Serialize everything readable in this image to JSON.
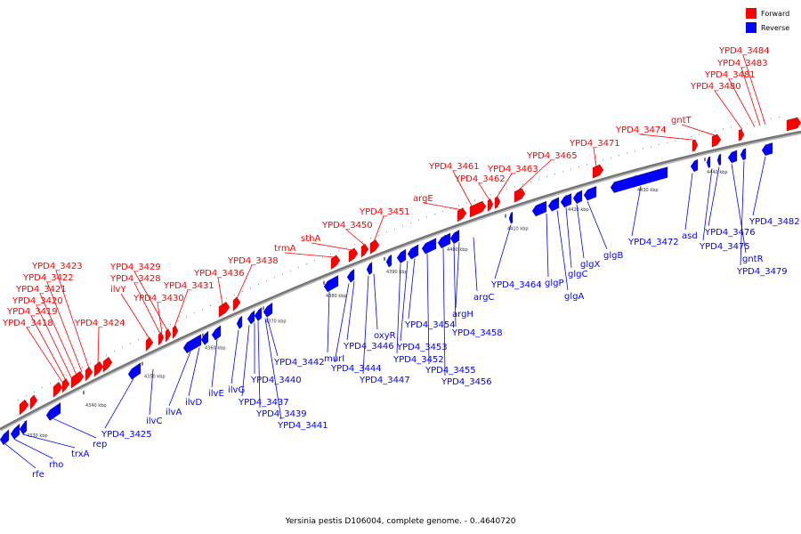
{
  "caption": "Yersinia pestis D106004, complete genome. - 0..4640720",
  "legend": {
    "forward": {
      "label": "Forward",
      "color": "#ff0000"
    },
    "reverse": {
      "label": "Reverse",
      "color": "#0000ff"
    }
  },
  "ticks": [
    "4330 kbp",
    "4340 kbp",
    "4350 kbp",
    "4360 kbp",
    "4370 kbp",
    "4380 kbp",
    "4390 kbp",
    "4400 kbp",
    "4410 kbp",
    "4420 kbp",
    "4430 kbp",
    "4440 kbp"
  ],
  "forward_genes": [
    "YPD4_3418",
    "YPD4_3419",
    "YPD4_3420",
    "YPD4_3421",
    "YPD4_3422",
    "YPD4_3423",
    "YPD4_3424",
    "ilvY",
    "YPD4_3428",
    "YPD4_3429",
    "YPD4_3430",
    "YPD4_3431",
    "YPD4_3436",
    "YPD4_3438",
    "trmA",
    "sthA",
    "YPD4_3450",
    "YPD4_3451",
    "argE",
    "YPD4_3461",
    "YPD4_3462",
    "YPD4_3463",
    "YPD4_3465",
    "YPD4_3471",
    "YPD4_3474",
    "gntT",
    "YPD4_3480",
    "YPD4_3481",
    "YPD4_3483",
    "YPD4_3484"
  ],
  "reverse_genes": [
    "rfe",
    "rho",
    "trxA",
    "rep",
    "YPD4_3425",
    "ilvC",
    "ilvA",
    "ilvD",
    "ilvE",
    "ilvG",
    "YPD4_3437",
    "YPD4_3439",
    "YPD4_3441",
    "YPD4_3440",
    "YPD4_3442",
    "murI",
    "YPD4_3444",
    "YPD4_3446",
    "YPD4_3447",
    "oxyR",
    "YPD4_3452",
    "YPD4_3453",
    "YPD4_3454",
    "YPD4_3455",
    "YPD4_3456",
    "YPD4_3458",
    "argH",
    "argC",
    "YPD4_3464",
    "glgP",
    "glgA",
    "glgC",
    "glgX",
    "glgB",
    "YPD4_3472",
    "asd",
    "YPD4_3475",
    "YPD4_3476",
    "gntR",
    "YPD4_3479",
    "YPD4_3482"
  ]
}
